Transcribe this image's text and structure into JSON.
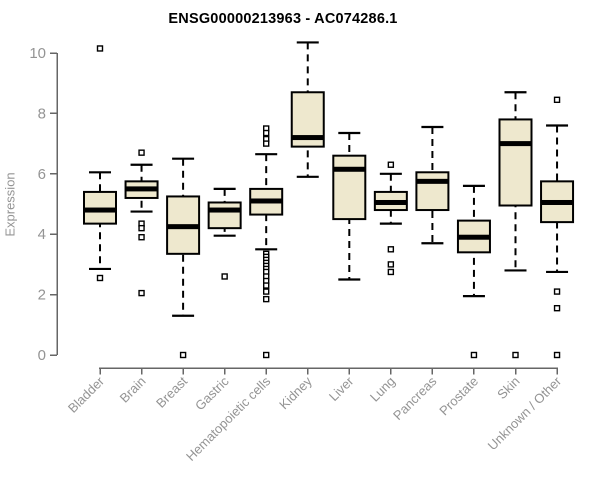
{
  "title": "ENSG00000213963 - AC074286.1",
  "colors": {
    "title": "#000000",
    "axis_line": "#666666",
    "tick_label": "#949494",
    "box_fill": "#EEE8CE",
    "box_stroke": "#000000",
    "median": "#000000",
    "outlier_fill": "#ffffff"
  },
  "chart_data": {
    "type": "boxplot",
    "title": "ENSG00000213963 - AC074286.1",
    "xlabel": "",
    "ylabel": "Expression",
    "ylim": [
      0,
      10.4
    ],
    "yticks": [
      0,
      2,
      4,
      6,
      8,
      10
    ],
    "grid": false,
    "legend": "none",
    "categories": [
      "Bladder",
      "Brain",
      "Breast",
      "Gastric",
      "Hematopoietic cells",
      "Kidney",
      "Liver",
      "Lung",
      "Pancreas",
      "Prostate",
      "Skin",
      "Unknown / Other"
    ],
    "series": [
      {
        "name": "Bladder",
        "low": 2.85,
        "q1": 4.35,
        "median": 4.8,
        "q3": 5.4,
        "high": 6.05,
        "outliers": [
          10.15,
          2.55
        ]
      },
      {
        "name": "Brain",
        "low": 4.75,
        "q1": 5.2,
        "median": 5.5,
        "q3": 5.75,
        "high": 6.3,
        "outliers": [
          6.7,
          4.35,
          4.2,
          3.9,
          2.05
        ]
      },
      {
        "name": "Breast",
        "low": 1.3,
        "q1": 3.35,
        "median": 4.25,
        "q3": 5.25,
        "high": 6.5,
        "outliers": [
          0
        ]
      },
      {
        "name": "Gastric",
        "low": 3.95,
        "q1": 4.2,
        "median": 4.8,
        "q3": 5.05,
        "high": 5.5,
        "outliers": [
          2.6
        ]
      },
      {
        "name": "Hematopoietic cells",
        "low": 3.5,
        "q1": 4.65,
        "median": 5.1,
        "q3": 5.5,
        "high": 6.65,
        "outliers": [
          7.5,
          7.35,
          7.15,
          7.0,
          3.35,
          3.25,
          3.15,
          3.05,
          2.95,
          2.85,
          2.75,
          2.6,
          2.45,
          2.3,
          2.1,
          1.85,
          0
        ]
      },
      {
        "name": "Kidney",
        "low": 5.9,
        "q1": 6.9,
        "median": 7.2,
        "q3": 8.7,
        "high": 10.35,
        "outliers": []
      },
      {
        "name": "Liver",
        "low": 2.5,
        "q1": 4.5,
        "median": 6.15,
        "q3": 6.6,
        "high": 7.35,
        "outliers": []
      },
      {
        "name": "Lung",
        "low": 4.35,
        "q1": 4.8,
        "median": 5.05,
        "q3": 5.4,
        "high": 6.0,
        "outliers": [
          6.3,
          3.5,
          3.0,
          2.75
        ]
      },
      {
        "name": "Pancreas",
        "low": 3.7,
        "q1": 4.8,
        "median": 5.75,
        "q3": 6.05,
        "high": 7.55,
        "outliers": []
      },
      {
        "name": "Prostate",
        "low": 1.95,
        "q1": 3.4,
        "median": 3.9,
        "q3": 4.45,
        "high": 5.6,
        "outliers": [
          0
        ]
      },
      {
        "name": "Skin",
        "low": 2.8,
        "q1": 4.95,
        "median": 7.0,
        "q3": 7.8,
        "high": 8.7,
        "outliers": [
          0
        ]
      },
      {
        "name": "Unknown / Other",
        "low": 2.75,
        "q1": 4.4,
        "median": 5.05,
        "q3": 5.75,
        "high": 7.6,
        "outliers": [
          8.45,
          2.1,
          1.55,
          0
        ]
      }
    ]
  }
}
